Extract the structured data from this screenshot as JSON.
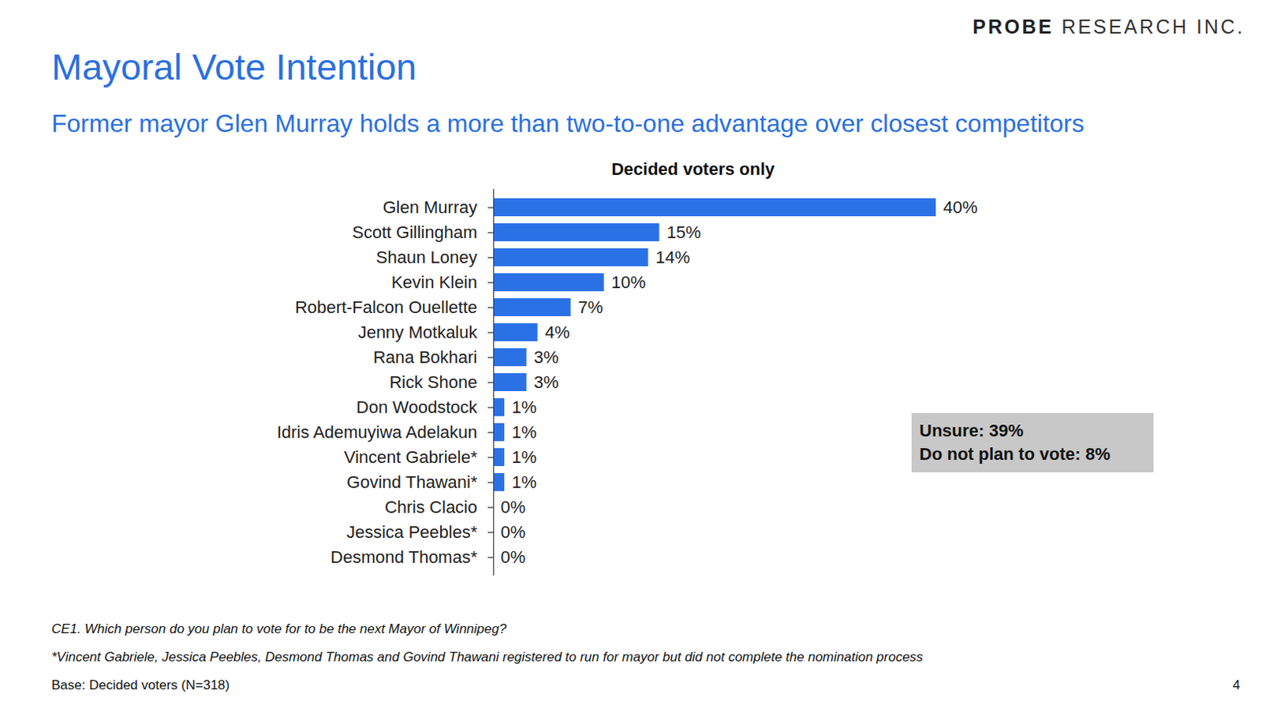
{
  "header": {
    "logo": [
      "PROBE",
      "RESEARCH INC."
    ],
    "title": "Mayoral Vote Intention",
    "subtitle": "Former mayor Glen Murray holds a more than two-to-one advantage over closest competitors"
  },
  "chart_data": {
    "type": "bar",
    "orientation": "horizontal",
    "title": "Decided voters only",
    "categories": [
      "Glen Murray",
      "Scott Gillingham",
      "Shaun Loney",
      "Kevin Klein",
      "Robert-Falcon Ouellette",
      "Jenny Motkaluk",
      "Rana Bokhari",
      "Rick Shone",
      "Don Woodstock",
      "Idris Ademuyiwa Adelakun",
      "Vincent Gabriele*",
      "Govind Thawani*",
      "Chris Clacio",
      "Jessica Peebles*",
      "Desmond Thomas*"
    ],
    "values": [
      40,
      15,
      14,
      10,
      7,
      4,
      3,
      3,
      1,
      1,
      1,
      1,
      0,
      0,
      0
    ],
    "value_labels": [
      "40%",
      "15%",
      "14%",
      "10%",
      "7%",
      "4%",
      "3%",
      "3%",
      "1%",
      "1%",
      "1%",
      "1%",
      "0%",
      "0%",
      "0%"
    ],
    "color": "#2b71e6",
    "xlim": [
      0,
      40
    ],
    "data_labels": true,
    "tick_labels": "y",
    "grid": false,
    "annotations": [
      "Unsure: 39%",
      "Do not plan to vote: 8%"
    ]
  },
  "notes": [
    "CE1. Which person do you plan to vote for to be the next Mayor of Winnipeg?",
    "*Vincent Gabriele, Jessica Peebles, Desmond Thomas and Govind Thawani registered to run for mayor but did not complete the nomination process",
    "Base: Decided voters (N=318)"
  ],
  "page_number": "4"
}
